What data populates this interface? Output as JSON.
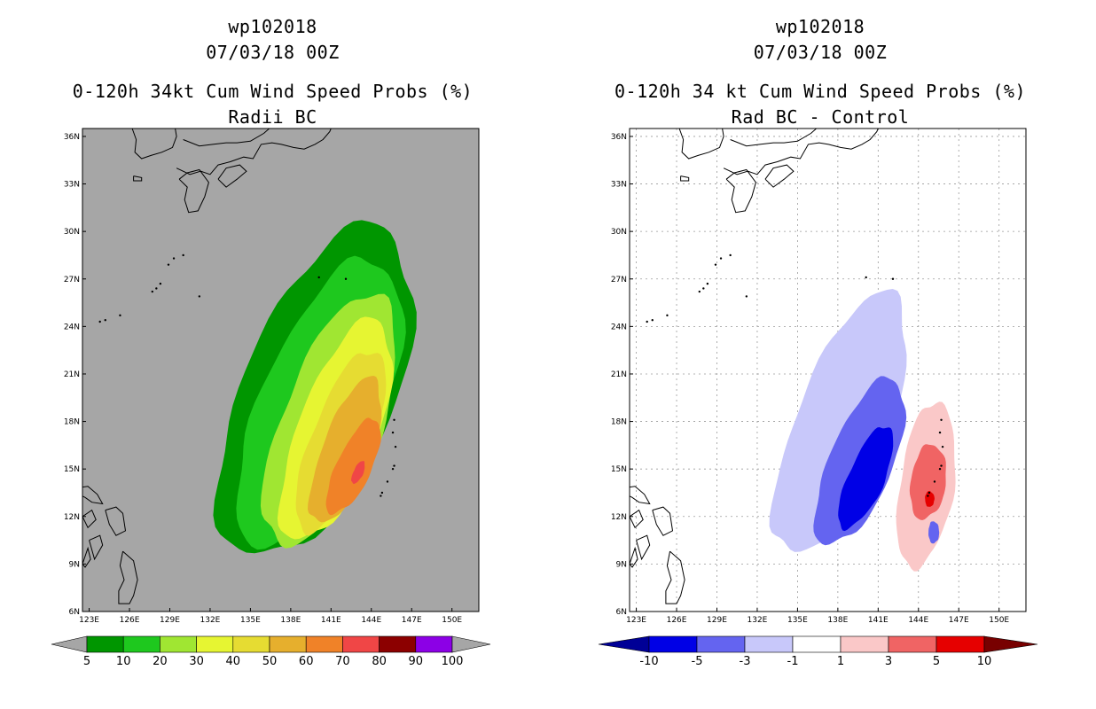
{
  "chart_data": [
    {
      "type": "heatmap",
      "storm_id": "wp102018",
      "date": "07/03/18 00Z",
      "title": "0-120h 34kt Cum Wind Speed Probs (%)",
      "subtitle": "Radii BC",
      "x_ticks": [
        "123E",
        "126E",
        "129E",
        "132E",
        "135E",
        "138E",
        "141E",
        "144E",
        "147E",
        "150E"
      ],
      "y_ticks": [
        "6N",
        "9N",
        "12N",
        "15N",
        "18N",
        "21N",
        "24N",
        "27N",
        "30N",
        "33N",
        "36N"
      ],
      "xlim": [
        122.5,
        152
      ],
      "ylim": [
        6,
        36.5
      ],
      "background": "#a6a6a6",
      "grid": false,
      "colorbar": {
        "labels": [
          "5",
          "10",
          "20",
          "30",
          "40",
          "50",
          "60",
          "70",
          "80",
          "90",
          "100"
        ],
        "colors": [
          "#009600",
          "#1ec81e",
          "#a0e632",
          "#e6f532",
          "#e6dc32",
          "#e6af2d",
          "#f08228",
          "#f04646",
          "#8c0000",
          "#8c00e6"
        ],
        "extend_color": "#a6a6a6"
      },
      "contours": [
        {
          "level": 5,
          "color": "#009600",
          "lat": 20.0,
          "lon": 139.5,
          "a": 11.5,
          "b": 5.5,
          "angle": 28
        },
        {
          "level": 10,
          "color": "#1ec81e",
          "lat": 19.2,
          "lon": 139.9,
          "a": 10.0,
          "b": 4.5,
          "angle": 28
        },
        {
          "level": 20,
          "color": "#a0e632",
          "lat": 18.2,
          "lon": 140.7,
          "a": 8.6,
          "b": 3.6,
          "angle": 26
        },
        {
          "level": 30,
          "color": "#e6f532",
          "lat": 17.5,
          "lon": 141.2,
          "a": 7.6,
          "b": 2.9,
          "angle": 25
        },
        {
          "level": 40,
          "color": "#e6dc32",
          "lat": 16.8,
          "lon": 141.6,
          "a": 6.2,
          "b": 2.3,
          "angle": 25
        },
        {
          "level": 50,
          "color": "#e6af2d",
          "lat": 16.2,
          "lon": 142.0,
          "a": 5.0,
          "b": 1.8,
          "angle": 25
        },
        {
          "level": 60,
          "color": "#f08228",
          "lat": 15.2,
          "lon": 142.6,
          "a": 3.4,
          "b": 1.25,
          "angle": 30
        },
        {
          "level": 70,
          "color": "#f04646",
          "lat": 14.8,
          "lon": 143.0,
          "a": 0.8,
          "b": 0.35,
          "angle": 30
        }
      ]
    },
    {
      "type": "heatmap",
      "storm_id": "wp102018",
      "date": "07/03/18 00Z",
      "title": "0-120h 34 kt Cum Wind Speed Probs (%)",
      "subtitle": "Rad BC - Control",
      "x_ticks": [
        "123E",
        "126E",
        "129E",
        "132E",
        "135E",
        "138E",
        "141E",
        "144E",
        "147E",
        "150E"
      ],
      "y_ticks": [
        "6N",
        "9N",
        "12N",
        "15N",
        "18N",
        "21N",
        "24N",
        "27N",
        "30N",
        "33N",
        "36N"
      ],
      "xlim": [
        122.5,
        152
      ],
      "ylim": [
        6,
        36.5
      ],
      "background": "#ffffff",
      "grid": true,
      "colorbar": {
        "labels": [
          "-10",
          "-5",
          "-3",
          "-1",
          "1",
          "3",
          "5",
          "10"
        ],
        "colors": [
          "#0000e6",
          "#6464f0",
          "#c8c8fa",
          "#ffffff",
          "#fac8c8",
          "#f06464",
          "#e60000"
        ],
        "extend_left_color": "#000096",
        "extend_right_color": "#780000"
      },
      "contours": [
        {
          "level": -1,
          "color": "#c8c8fa",
          "lat": 18.0,
          "lon": 138.0,
          "a": 9.0,
          "b": 3.4,
          "angle": 26
        },
        {
          "level": -3,
          "color": "#6464f0",
          "lat": 15.5,
          "lon": 139.5,
          "a": 5.8,
          "b": 2.3,
          "angle": 27
        },
        {
          "level": -5,
          "color": "#0000e6",
          "lat": 14.5,
          "lon": 140.0,
          "a": 3.6,
          "b": 1.3,
          "angle": 28
        },
        {
          "level": 1,
          "color": "#fac8c8",
          "lat": 14.0,
          "lon": 144.4,
          "a": 5.3,
          "b": 2.0,
          "angle": 10
        },
        {
          "level": 3,
          "color": "#f06464",
          "lat": 14.2,
          "lon": 144.6,
          "a": 2.4,
          "b": 1.3,
          "angle": 10
        },
        {
          "level": 5,
          "color": "#e60000",
          "lat": 13.1,
          "lon": 144.8,
          "a": 0.5,
          "b": 0.35,
          "angle": 0
        },
        {
          "level": -3,
          "color": "#6464f0",
          "lat": 11.0,
          "lon": 145.1,
          "a": 0.7,
          "b": 0.4,
          "angle": 0
        }
      ]
    }
  ]
}
